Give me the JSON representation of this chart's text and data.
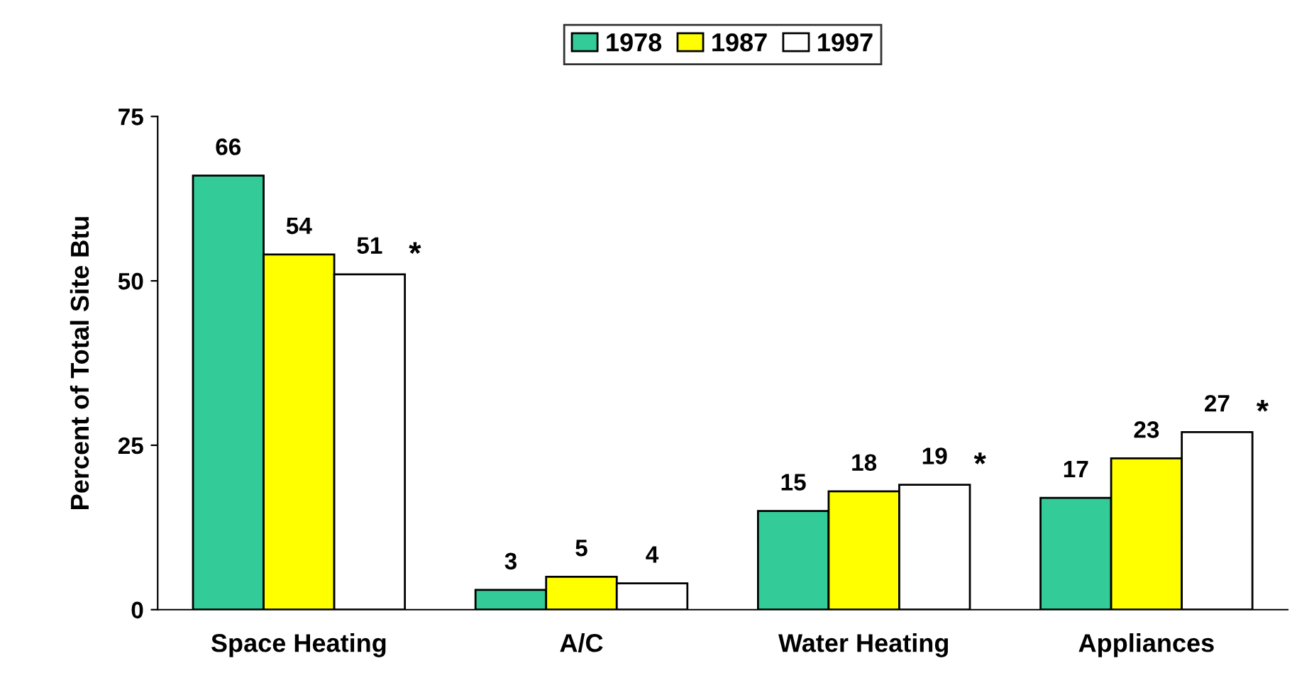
{
  "chart_data": {
    "type": "bar",
    "ylabel": "Percent of Total Site Btu",
    "categories": [
      "Space Heating",
      "A/C",
      "Water Heating",
      "Appliances"
    ],
    "series": [
      {
        "name": "1978",
        "color": "#33cc99",
        "values": [
          66,
          3,
          15,
          17
        ]
      },
      {
        "name": "1987",
        "color": "#ffff00",
        "values": [
          54,
          5,
          18,
          23
        ]
      },
      {
        "name": "1997",
        "color": "#ffffff",
        "values": [
          51,
          4,
          19,
          27
        ]
      }
    ],
    "ylim": [
      0,
      75
    ],
    "yticks": [
      0,
      25,
      50,
      75
    ],
    "grid": false,
    "legend": "top",
    "data_labels": true,
    "annotations": [
      "*",
      "*",
      "*"
    ]
  }
}
